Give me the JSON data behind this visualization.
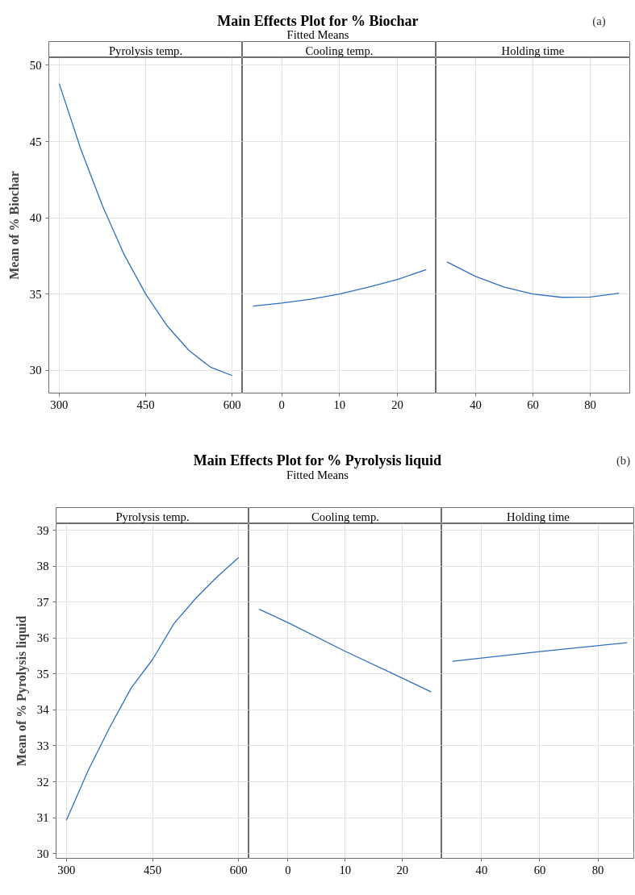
{
  "chart_data": [
    {
      "type": "line",
      "xlabel": "Pyrolysis temp.",
      "ylabel": "Mean of % Biochar",
      "x": [
        300,
        337.5,
        375,
        412.5,
        450,
        487.5,
        525,
        562.5,
        600
      ],
      "series": [
        {
          "color": "#2f6fc0",
          "values": [
            48.8,
            44.5,
            40.8,
            37.6,
            35.0,
            32.9,
            31.3,
            30.2,
            29.65
          ]
        }
      ],
      "xlim": [
        282,
        618
      ],
      "ylim": [
        28.5,
        50.5
      ],
      "xticks": [
        300,
        450,
        600
      ],
      "yticks": [
        30,
        35,
        40,
        45,
        50
      ],
      "grid": true
    },
    {
      "type": "line",
      "title": "Main Effects Plot for % Biochar",
      "subtitle": "Fitted Means",
      "xlabel": "Cooling temp.",
      "x": [
        -5,
        0,
        5,
        10,
        15,
        20,
        25
      ],
      "series": [
        {
          "color": "#2f6fc0",
          "values": [
            34.2,
            34.4,
            34.65,
            35.0,
            35.45,
            35.95,
            36.6
          ]
        }
      ],
      "xlim": [
        -6.8,
        26.7
      ],
      "ylim": [
        28.5,
        50.5
      ],
      "xticks": [
        0,
        10,
        20
      ],
      "yticks": [
        30,
        35,
        40,
        45,
        50
      ],
      "grid": true,
      "tick_labels": "x"
    },
    {
      "type": "line",
      "annotations": [
        "(a)"
      ],
      "xlabel": "Holding time",
      "x": [
        30,
        40,
        50,
        60,
        70,
        80,
        90
      ],
      "series": [
        {
          "color": "#2f6fc0",
          "values": [
            37.1,
            36.15,
            35.45,
            35.0,
            34.78,
            34.8,
            35.05
          ]
        }
      ],
      "xlim": [
        26.2,
        93.8
      ],
      "ylim": [
        28.5,
        50.5
      ],
      "xticks": [
        40,
        60,
        80
      ],
      "yticks": [
        30,
        35,
        40,
        45,
        50
      ],
      "grid": true,
      "tick_labels": "x"
    },
    {
      "type": "line",
      "xlabel": "Pyrolysis temp.",
      "ylabel": "Mean of % Pyrolysis liquid",
      "x": [
        300,
        337.5,
        375,
        412.5,
        450,
        487.5,
        525,
        562.5,
        600
      ],
      "series": [
        {
          "color": "#2f6fc0",
          "values": [
            30.93,
            32.3,
            33.5,
            34.6,
            35.4,
            36.4,
            37.1,
            37.7,
            38.24
          ]
        }
      ],
      "xlim": [
        282,
        618
      ],
      "ylim": [
        29.87,
        39.18
      ],
      "xticks": [
        300,
        450,
        600
      ],
      "yticks": [
        30,
        31,
        32,
        33,
        34,
        35,
        36,
        37,
        38,
        39
      ],
      "grid": true
    },
    {
      "type": "line",
      "title": "Main Effects Plot for % Pyrolysis liquid",
      "subtitle": "Fitted Means",
      "xlabel": "Cooling temp.",
      "x": [
        -5,
        0,
        10,
        20,
        25
      ],
      "series": [
        {
          "color": "#2f6fc0",
          "values": [
            36.8,
            36.43,
            35.63,
            34.88,
            34.5
          ]
        }
      ],
      "xlim": [
        -6.8,
        26.85
      ],
      "ylim": [
        29.87,
        39.18
      ],
      "xticks": [
        0,
        10,
        20
      ],
      "yticks": [
        30,
        31,
        32,
        33,
        34,
        35,
        36,
        37,
        38,
        39
      ],
      "grid": true,
      "tick_labels": "x"
    },
    {
      "type": "line",
      "annotations": [
        "(b)"
      ],
      "xlabel": "Holding time",
      "x": [
        30,
        60,
        90
      ],
      "series": [
        {
          "color": "#2f6fc0",
          "values": [
            35.35,
            35.62,
            35.87
          ]
        }
      ],
      "xlim": [
        26.3,
        92.6
      ],
      "ylim": [
        29.87,
        39.18
      ],
      "xticks": [
        40,
        60,
        80
      ],
      "yticks": [
        30,
        31,
        32,
        33,
        34,
        35,
        36,
        37,
        38,
        39
      ],
      "grid": true,
      "tick_labels": "x"
    }
  ]
}
